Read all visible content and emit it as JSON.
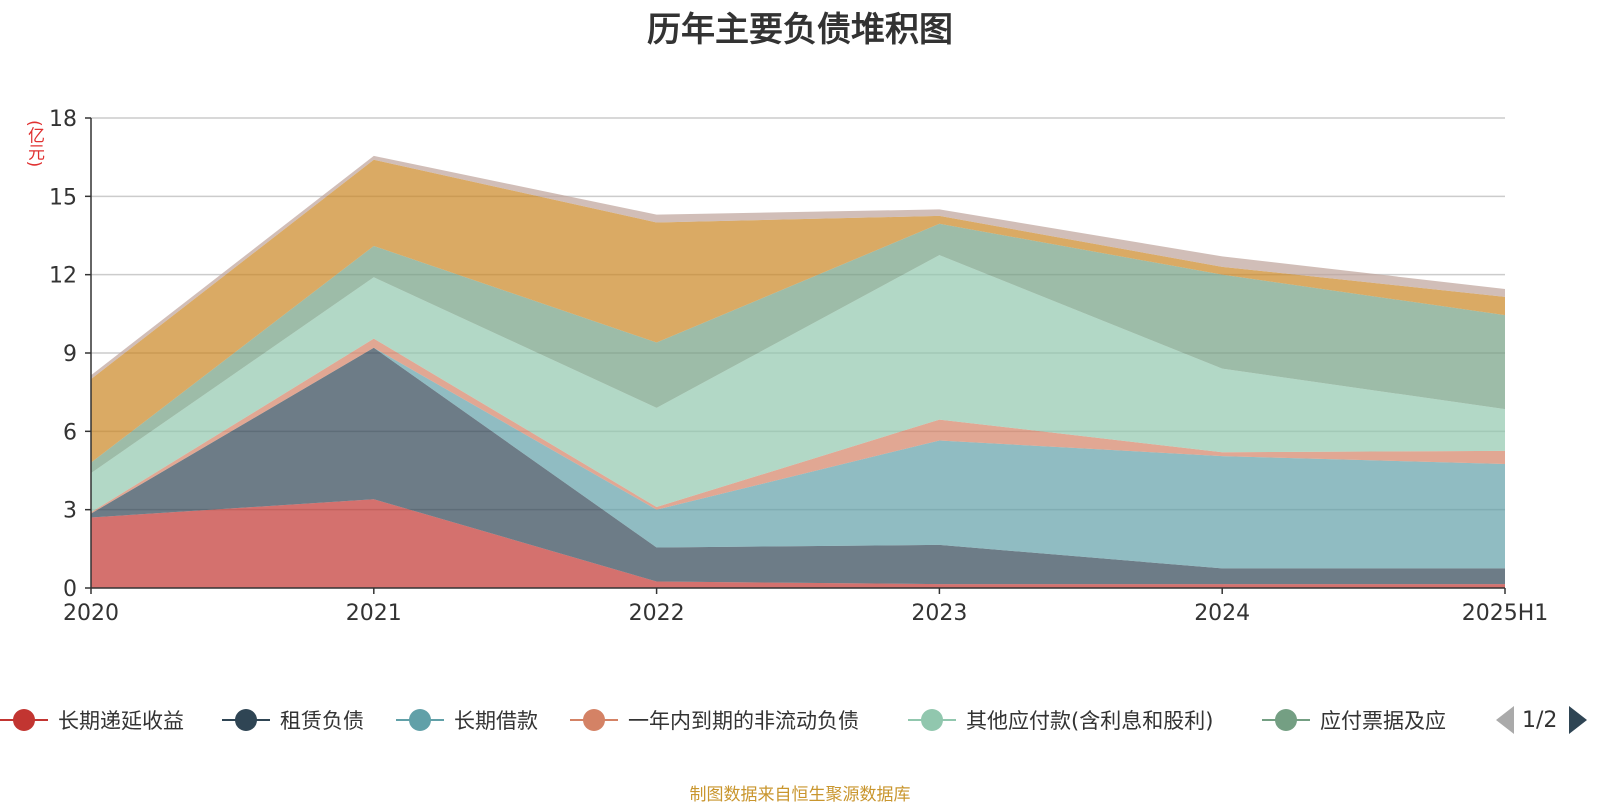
{
  "chart_data": {
    "type": "area",
    "stacked": true,
    "title": "历年主要负债堆积图",
    "ylabel": "(亿元)",
    "xlabel": "",
    "categories": [
      "2020",
      "2021",
      "2022",
      "2023",
      "2024",
      "2025H1"
    ],
    "ylim": [
      0,
      18
    ],
    "yticks": [
      0,
      3,
      6,
      9,
      12,
      15,
      18
    ],
    "grid": true,
    "legend_position": "bottom",
    "series": [
      {
        "name": "长期递延收益",
        "color": "#c23531",
        "values": [
          2.7,
          3.4,
          0.25,
          0.15,
          0.15,
          0.15
        ]
      },
      {
        "name": "租赁负债",
        "color": "#2f4554",
        "values": [
          0.15,
          5.8,
          1.3,
          1.5,
          0.6,
          0.6
        ]
      },
      {
        "name": "长期借款",
        "color": "#61a0a8",
        "values": [
          0.0,
          0.0,
          1.45,
          4.0,
          4.3,
          4.0
        ]
      },
      {
        "name": "一年内到期的非流动负债",
        "color": "#d48265",
        "values": [
          0.05,
          0.35,
          0.1,
          0.8,
          0.15,
          0.5
        ]
      },
      {
        "name": "其他应付款(含利息和股利)",
        "color": "#91c7ae",
        "values": [
          1.5,
          2.35,
          3.8,
          6.3,
          3.2,
          1.6
        ]
      },
      {
        "name": "应付票据及应付账款",
        "color": "#749f83",
        "values": [
          0.4,
          1.2,
          2.5,
          1.2,
          3.6,
          3.6
        ]
      },
      {
        "name": "",
        "color": "#ca8622",
        "values": [
          3.2,
          3.3,
          4.6,
          0.3,
          0.3,
          0.7
        ]
      },
      {
        "name": "",
        "color": "#bda29a",
        "values": [
          0.15,
          0.15,
          0.3,
          0.25,
          0.4,
          0.3
        ]
      }
    ]
  },
  "legend": {
    "items": [
      {
        "label": "长期递延收益",
        "color": "#c23531"
      },
      {
        "label": "租赁负债",
        "color": "#2f4554"
      },
      {
        "label": "长期借款",
        "color": "#61a0a8"
      },
      {
        "label": "一年内到期的非流动负债",
        "color": "#d48265"
      },
      {
        "label": "其他应付款(含利息和股利)",
        "color": "#91c7ae"
      },
      {
        "label": "应付票据及应",
        "color": "#749f83"
      }
    ],
    "page": "1/2"
  },
  "source": "制图数据来自恒生聚源数据库"
}
